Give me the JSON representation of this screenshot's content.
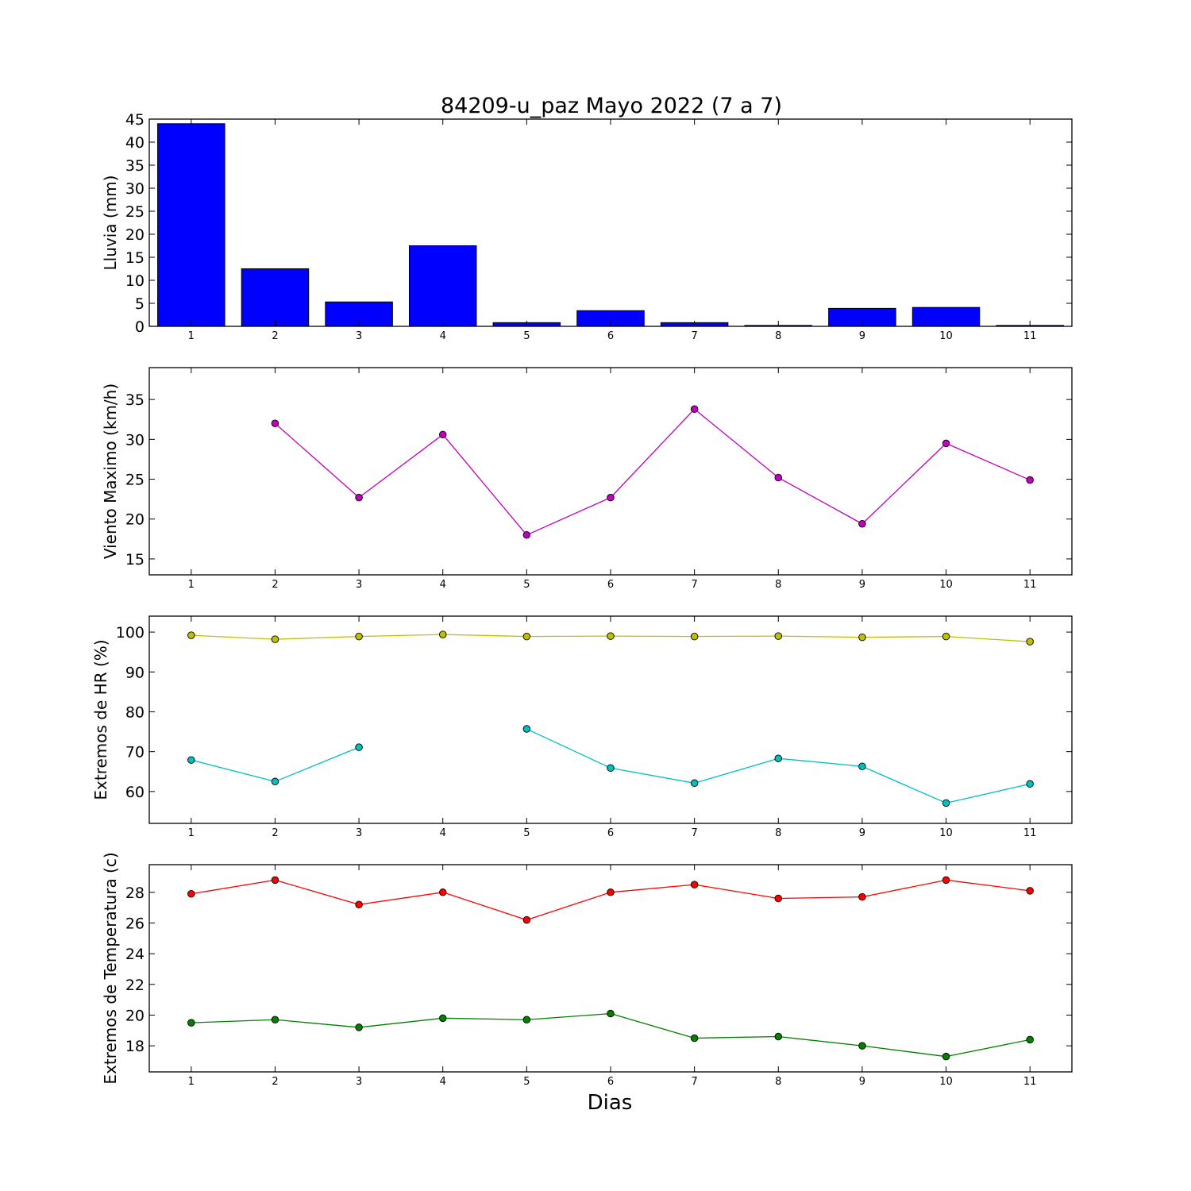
{
  "title": "84209-u_paz Mayo 2022  (7 a 7)",
  "xlabel": "Dias",
  "chart_data": [
    {
      "type": "bar",
      "ylabel": "Lluvia (mm)",
      "x": [
        1,
        2,
        3,
        4,
        5,
        6,
        7,
        8,
        9,
        10,
        11
      ],
      "ylim": [
        0,
        45
      ],
      "yticks": [
        0,
        5,
        10,
        15,
        20,
        25,
        30,
        35,
        40,
        45
      ],
      "series": [
        {
          "color": "#0000ff",
          "values": [
            44.0,
            12.5,
            5.3,
            17.5,
            0.8,
            3.4,
            0.8,
            0.2,
            3.9,
            4.1,
            0.2
          ]
        }
      ]
    },
    {
      "type": "line",
      "ylabel": "Viento Maximo (km/h)",
      "x": [
        1,
        2,
        3,
        4,
        5,
        6,
        7,
        8,
        9,
        10,
        11
      ],
      "ylim": [
        13,
        39
      ],
      "yticks": [
        15,
        20,
        25,
        30,
        35
      ],
      "series": [
        {
          "color": "#bf00bf",
          "values": [
            null,
            32.0,
            22.7,
            30.6,
            18.0,
            22.7,
            33.8,
            25.2,
            19.4,
            29.5,
            24.9
          ]
        }
      ]
    },
    {
      "type": "line",
      "ylabel": "Extremos de HR (%)",
      "x": [
        1,
        2,
        3,
        4,
        5,
        6,
        7,
        8,
        9,
        10,
        11
      ],
      "ylim": [
        52,
        104
      ],
      "yticks": [
        60,
        70,
        80,
        90,
        100
      ],
      "series": [
        {
          "color": "#bfbf00",
          "values": [
            99.2,
            98.2,
            98.9,
            99.4,
            98.9,
            99.0,
            98.9,
            99.0,
            98.7,
            98.9,
            97.6
          ]
        },
        {
          "color": "#00bfbf",
          "values": [
            67.9,
            62.5,
            71.1,
            null,
            75.7,
            65.9,
            62.1,
            68.3,
            66.3,
            57.1,
            61.9
          ]
        }
      ]
    },
    {
      "type": "line",
      "ylabel": "Extremos de Temperatura (c)",
      "x": [
        1,
        2,
        3,
        4,
        5,
        6,
        7,
        8,
        9,
        10,
        11
      ],
      "ylim": [
        16.3,
        29.8
      ],
      "yticks": [
        18,
        20,
        22,
        24,
        26,
        28
      ],
      "series": [
        {
          "color": "#ff0000",
          "values": [
            27.9,
            28.8,
            27.2,
            28.0,
            26.2,
            28.0,
            28.5,
            27.6,
            27.7,
            28.8,
            28.1
          ]
        },
        {
          "color": "#008000",
          "values": [
            19.5,
            19.7,
            19.2,
            19.8,
            19.7,
            20.1,
            18.5,
            18.6,
            18.0,
            17.3,
            18.4
          ]
        }
      ]
    }
  ]
}
